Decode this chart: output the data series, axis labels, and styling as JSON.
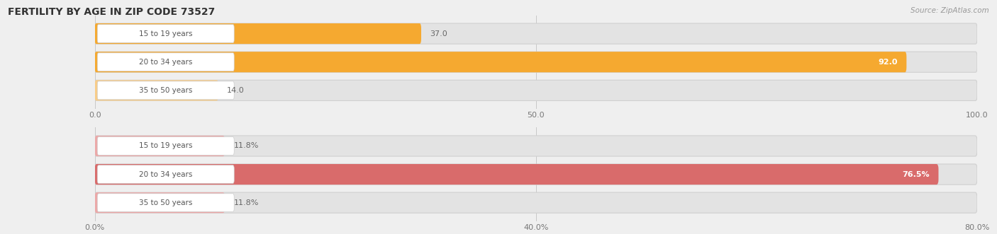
{
  "title": "FERTILITY BY AGE IN ZIP CODE 73527",
  "source": "Source: ZipAtlas.com",
  "top_chart": {
    "categories": [
      "15 to 19 years",
      "20 to 34 years",
      "35 to 50 years"
    ],
    "values": [
      37.0,
      92.0,
      14.0
    ],
    "xlim": [
      0,
      100
    ],
    "xticks": [
      0.0,
      50.0,
      100.0
    ],
    "xtick_labels": [
      "0.0",
      "50.0",
      "100.0"
    ],
    "bar_color_main": "#F5A930",
    "bar_color_light": "#F8CC88",
    "threshold": 30
  },
  "bottom_chart": {
    "categories": [
      "15 to 19 years",
      "20 to 34 years",
      "35 to 50 years"
    ],
    "values": [
      11.8,
      76.5,
      11.8
    ],
    "xlim": [
      0,
      80
    ],
    "xticks": [
      0.0,
      40.0,
      80.0
    ],
    "xtick_labels": [
      "0.0%",
      "40.0%",
      "80.0%"
    ],
    "bar_color_main": "#D96B6B",
    "bar_color_light": "#ECA8A8",
    "threshold": 30
  },
  "bg_color": "#EFEFEF",
  "bar_bg_color": "#E3E3E3",
  "label_bg": "#FFFFFF",
  "label_color": "#555555",
  "title_color": "#333333",
  "source_color": "#999999",
  "bar_height": 0.72,
  "bar_spacing": 1.0
}
